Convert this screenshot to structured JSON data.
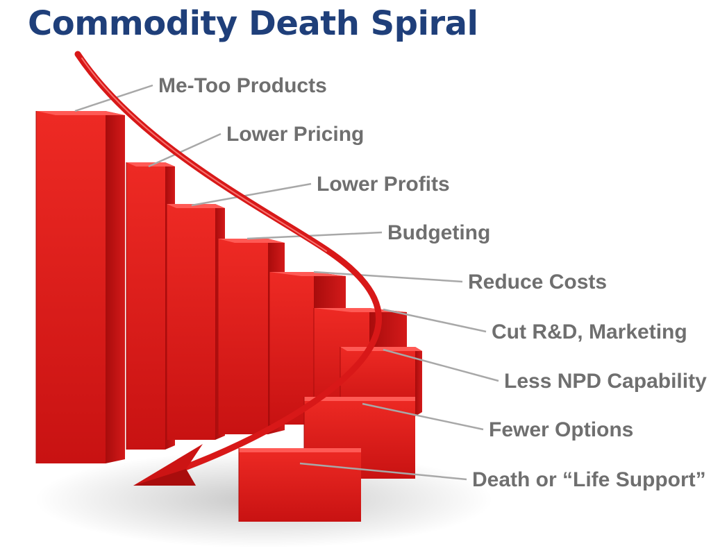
{
  "title": "Commodity Death Spiral",
  "stages": [
    "Me-Too Products",
    "Lower Pricing",
    "Lower Profits",
    "Budgeting",
    "Reduce Costs",
    "Cut R&D, Marketing",
    "Less NPD Capability",
    "Fewer Options",
    "Death or “Life Support”"
  ],
  "colors": {
    "title": "#1f3f7a",
    "label": "#6f6f6f",
    "bar_front": "#e01e1e",
    "bar_side": "#b80f0f",
    "bar_top": "#ff5a55",
    "arrow": "#d81818",
    "leader_line": "#a8a8a8"
  }
}
